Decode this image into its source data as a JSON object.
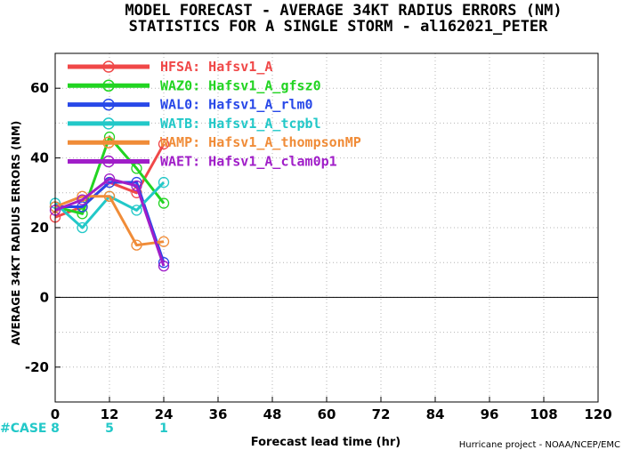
{
  "chart_data": {
    "type": "line",
    "title": "MODEL FORECAST - AVERAGE 34KT RADIUS ERRORS (NM)",
    "subtitle": "STATISTICS FOR A SINGLE STORM - al162021_PETER",
    "xlabel": "Forecast lead time (hr)",
    "ylabel": "AVERAGE 34KT RADIUS ERRORS (NM)",
    "xlim": [
      0,
      120
    ],
    "ylim": [
      -30,
      70
    ],
    "xticks": [
      0,
      12,
      24,
      36,
      48,
      60,
      72,
      84,
      96,
      108,
      120
    ],
    "yticks": [
      -20,
      0,
      20,
      40,
      60
    ],
    "grid": true,
    "legend_position": "top-left",
    "cases": {
      "label": "#CASE",
      "x": [
        0,
        12,
        24
      ],
      "values": [
        "8",
        "5",
        "1"
      ],
      "color": "#22c8c8"
    },
    "credit": "Hurricane project - NOAA/NCEP/EMC",
    "x": [
      0,
      6,
      12,
      18,
      24
    ],
    "series": [
      {
        "name": "HFSA: Hafsv1_A",
        "color": "#f04848",
        "values": [
          23,
          26,
          33,
          30,
          44
        ]
      },
      {
        "name": "WAZ0: Hafsv1_A_gfsz0",
        "color": "#22d422",
        "values": [
          26,
          24,
          46,
          37,
          27
        ]
      },
      {
        "name": "WAL0: Hafsv1_A_rlm0",
        "color": "#2848e8",
        "values": [
          26,
          26,
          33,
          33,
          10
        ]
      },
      {
        "name": "WATB: Hafsv1_A_tcpbl",
        "color": "#22c8c8",
        "values": [
          27,
          20,
          29,
          25,
          33
        ]
      },
      {
        "name": "WAMP: Hafsv1_A_thompsonMP",
        "color": "#f08c38",
        "values": [
          26,
          29,
          29,
          15,
          16
        ]
      },
      {
        "name": "WAET: Hafsv1_A_clam0p1",
        "color": "#a01ec8",
        "values": [
          25,
          28,
          34,
          32,
          9
        ]
      }
    ]
  }
}
